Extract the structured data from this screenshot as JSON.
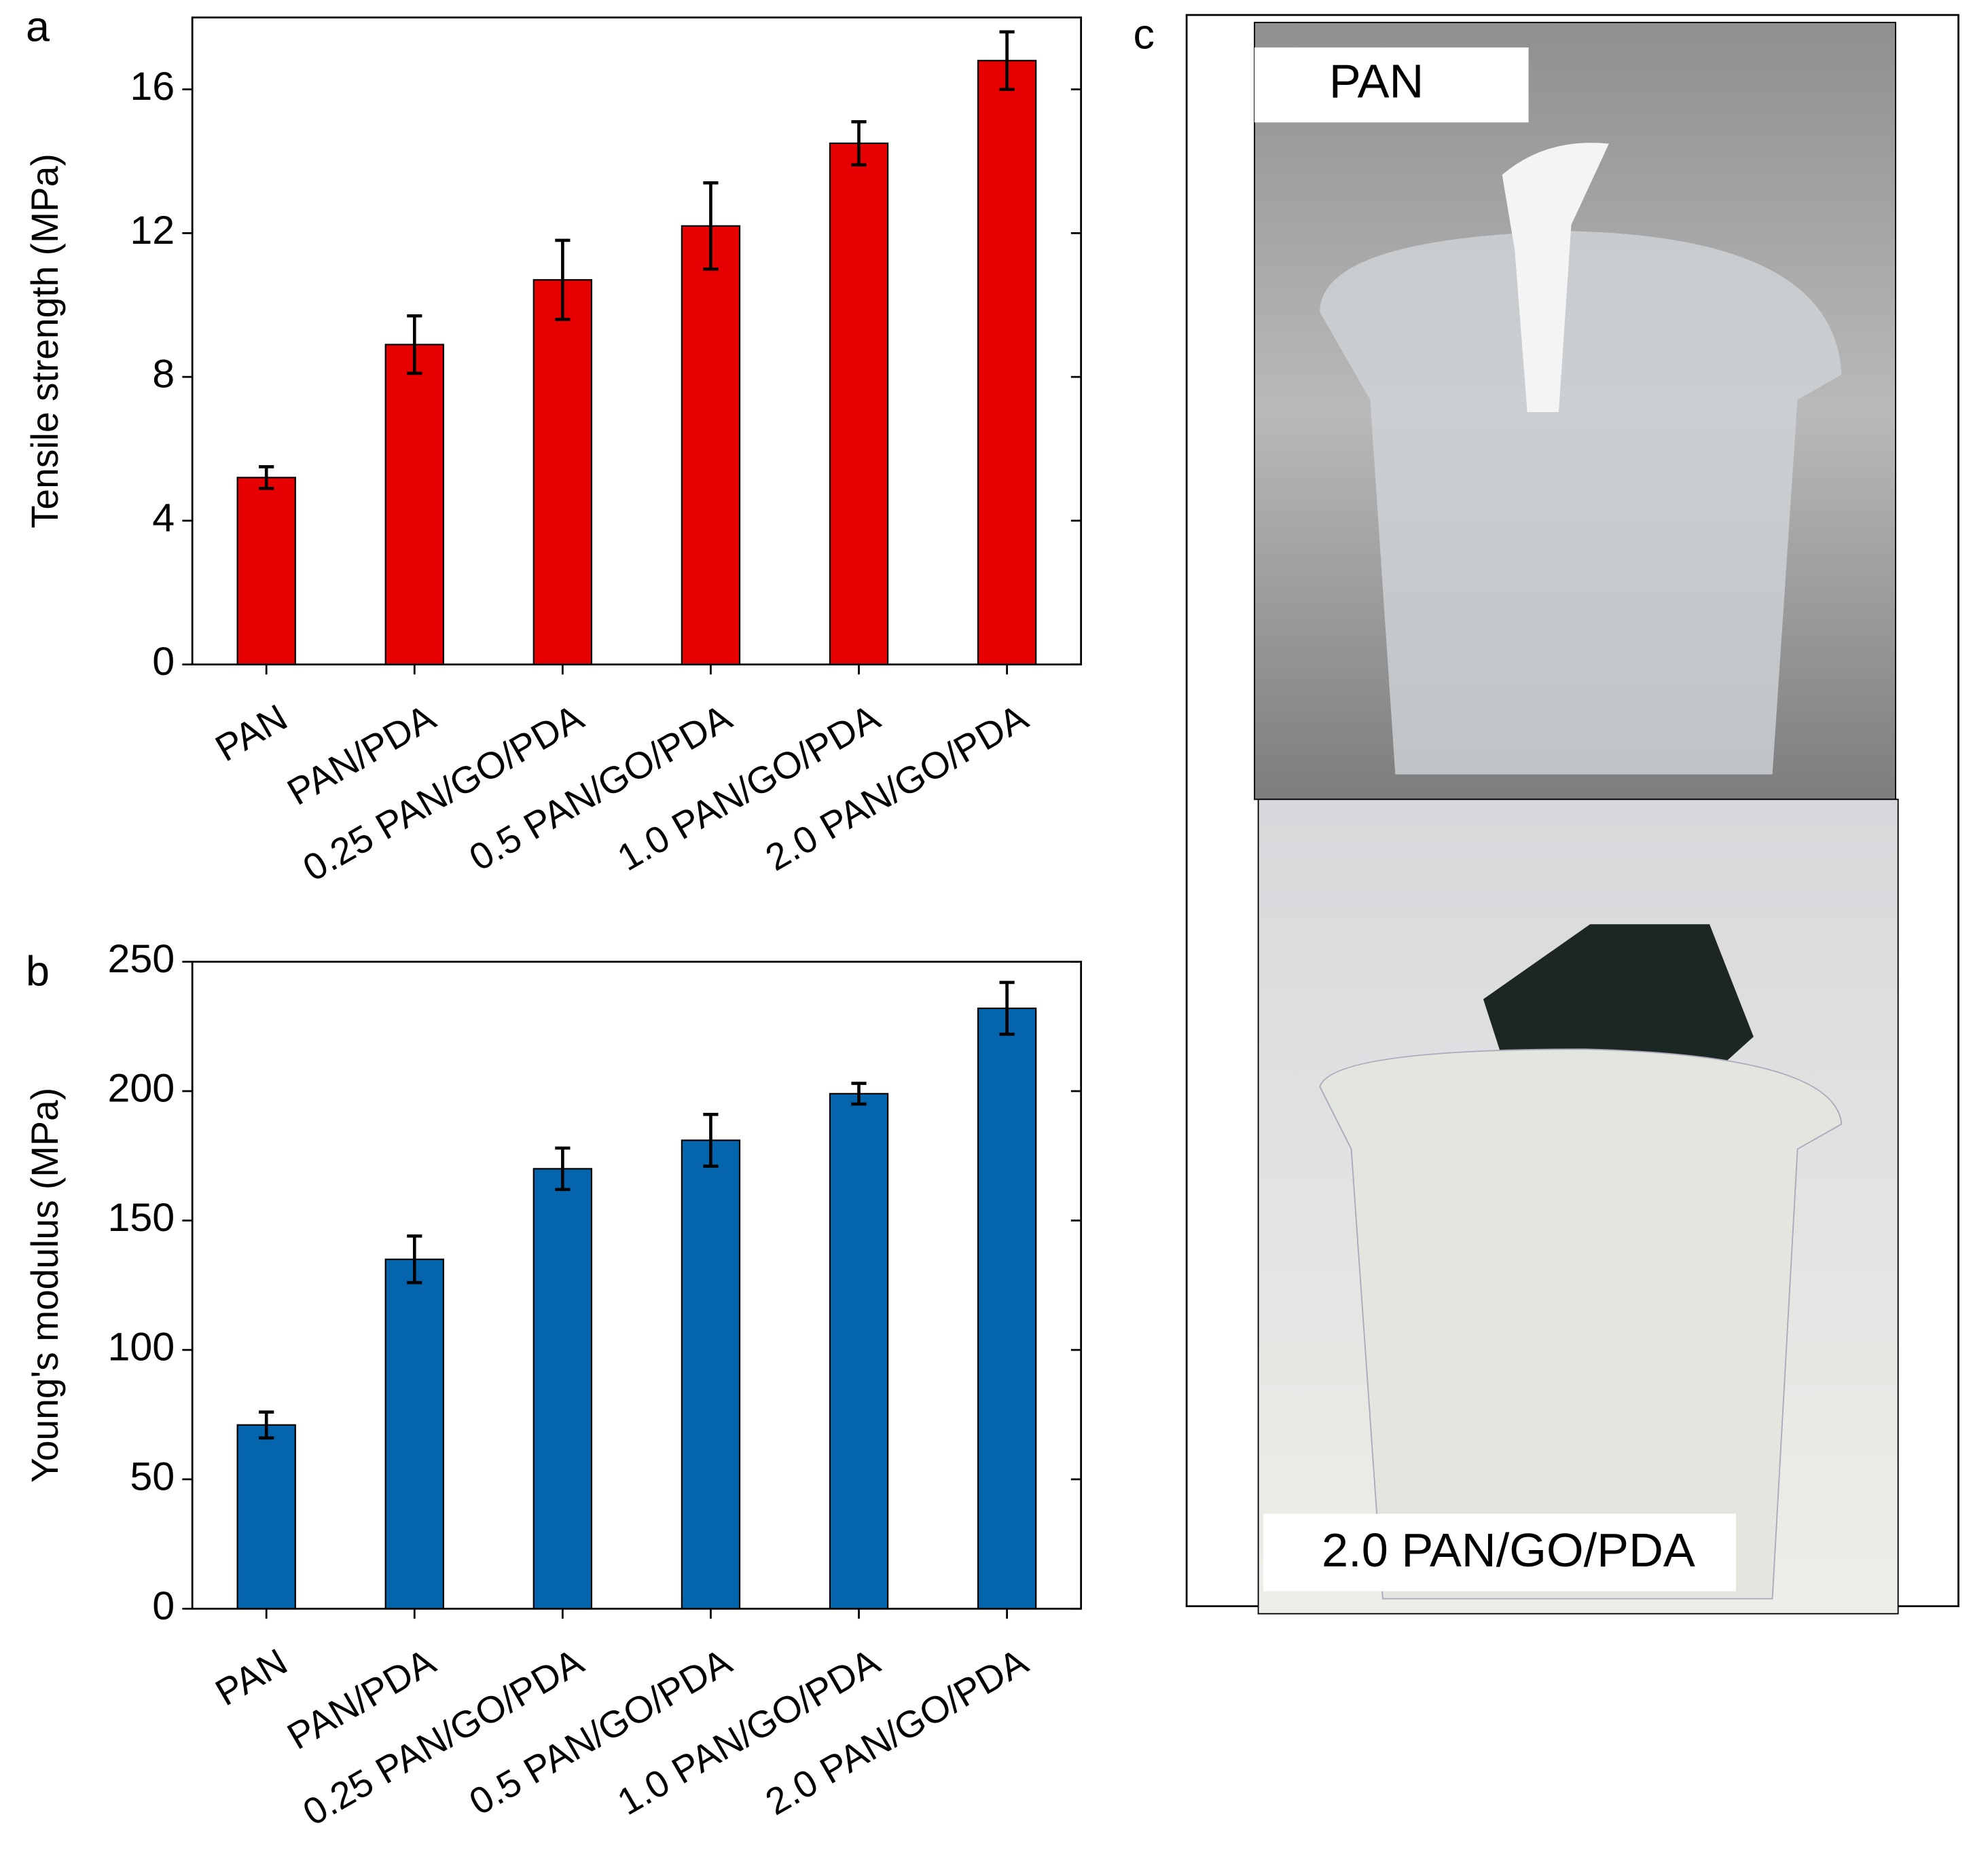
{
  "chart_data": [
    {
      "type": "bar",
      "panel_label": "a",
      "y_label": "Tensile strength (MPa)",
      "categories": [
        "PAN",
        "PAN/PDA",
        "0.25 PAN/GO/PDA",
        "0.5 PAN/GO/PDA",
        "1.0 PAN/GO/PDA",
        "2.0 PAN/GO/PDA"
      ],
      "values": [
        5.2,
        8.9,
        10.7,
        12.2,
        14.5,
        16.8
      ],
      "errors": [
        0.3,
        0.8,
        1.1,
        1.2,
        0.6,
        0.8
      ],
      "color": "#e60000",
      "ylim": [
        0,
        18
      ],
      "yticks": [
        0,
        4,
        8,
        12,
        16
      ]
    },
    {
      "type": "bar",
      "panel_label": "b",
      "y_label": "Young's modulus (MPa)",
      "categories": [
        "PAN",
        "PAN/PDA",
        "0.25 PAN/GO/PDA",
        "0.5 PAN/GO/PDA",
        "1.0 PAN/GO/PDA",
        "2.0 PAN/GO/PDA"
      ],
      "values": [
        71,
        135,
        170,
        181,
        199,
        232
      ],
      "errors": [
        5,
        9,
        8,
        10,
        4,
        10
      ],
      "color": "#0465ad",
      "ylim": [
        0,
        250
      ],
      "yticks": [
        0,
        50,
        100,
        150,
        200,
        250
      ]
    }
  ],
  "photos": {
    "panel_label": "c",
    "labels": [
      "PAN",
      "2.0 PAN/GO/PDA"
    ]
  }
}
